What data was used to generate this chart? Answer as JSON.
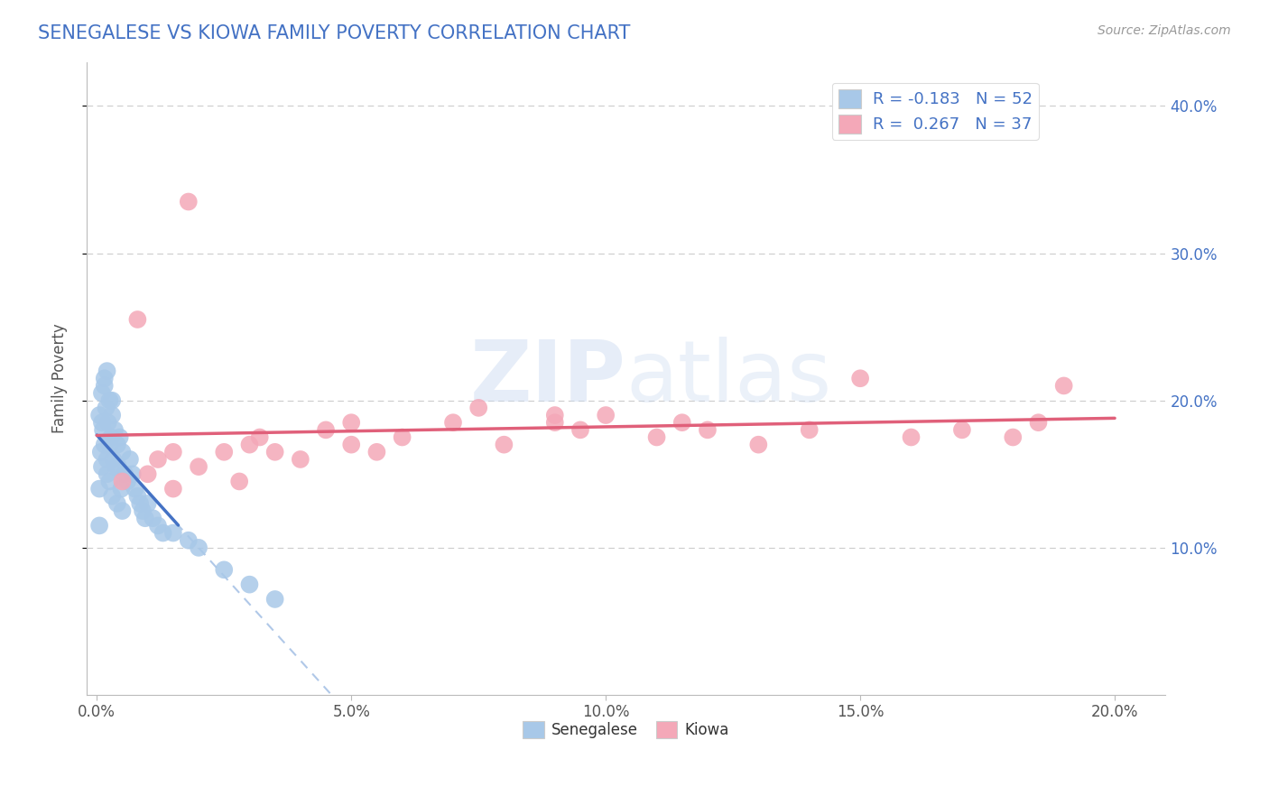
{
  "title": "SENEGALESE VS KIOWA FAMILY POVERTY CORRELATION CHART",
  "source": "Source: ZipAtlas.com",
  "xlabel_vals": [
    0.0,
    5.0,
    10.0,
    15.0,
    20.0
  ],
  "ylabel_vals": [
    10.0,
    20.0,
    30.0,
    40.0
  ],
  "ylim": [
    0.0,
    43.0
  ],
  "xlim": [
    -0.2,
    21.0
  ],
  "senegalese_color": "#a8c8e8",
  "kiowa_color": "#f4a8b8",
  "senegalese_R": -0.183,
  "senegalese_N": 52,
  "kiowa_R": 0.267,
  "kiowa_N": 37,
  "regression_line_blue": "#4472c4",
  "regression_line_pink": "#e0607a",
  "dashed_line_color": "#b0c8e8",
  "watermark": "ZIPatlas",
  "background_color": "#ffffff",
  "senegalese_x": [
    0.05,
    0.05,
    0.08,
    0.1,
    0.1,
    0.12,
    0.15,
    0.15,
    0.18,
    0.2,
    0.2,
    0.22,
    0.25,
    0.25,
    0.28,
    0.3,
    0.3,
    0.32,
    0.35,
    0.38,
    0.4,
    0.4,
    0.42,
    0.45,
    0.48,
    0.5,
    0.5,
    0.55,
    0.6,
    0.65,
    0.7,
    0.75,
    0.8,
    0.85,
    0.9,
    0.95,
    1.0,
    1.1,
    1.2,
    1.3,
    1.5,
    1.8,
    2.0,
    2.5,
    3.0,
    3.5,
    0.05,
    0.1,
    0.15,
    0.2,
    0.25,
    0.3
  ],
  "senegalese_y": [
    19.0,
    14.0,
    16.5,
    20.5,
    15.5,
    18.0,
    21.5,
    17.0,
    19.5,
    22.0,
    15.0,
    18.5,
    20.0,
    14.5,
    17.5,
    19.0,
    13.5,
    16.0,
    18.0,
    15.5,
    17.0,
    13.0,
    15.5,
    17.5,
    14.0,
    16.5,
    12.5,
    15.0,
    14.5,
    16.0,
    15.0,
    14.0,
    13.5,
    13.0,
    12.5,
    12.0,
    13.0,
    12.0,
    11.5,
    11.0,
    11.0,
    10.5,
    10.0,
    8.5,
    7.5,
    6.5,
    11.5,
    18.5,
    21.0,
    16.0,
    17.0,
    20.0
  ],
  "kiowa_x": [
    0.5,
    0.8,
    1.0,
    1.2,
    1.5,
    1.8,
    2.0,
    2.5,
    2.8,
    3.0,
    3.5,
    4.0,
    4.5,
    5.0,
    5.5,
    6.0,
    7.0,
    7.5,
    8.0,
    9.0,
    9.5,
    10.0,
    11.0,
    11.5,
    12.0,
    13.0,
    14.0,
    15.0,
    16.0,
    17.0,
    18.0,
    18.5,
    19.0,
    1.5,
    3.2,
    5.0,
    9.0
  ],
  "kiowa_y": [
    14.5,
    25.5,
    15.0,
    16.0,
    14.0,
    33.5,
    15.5,
    16.5,
    14.5,
    17.0,
    16.5,
    16.0,
    18.0,
    17.0,
    16.5,
    17.5,
    18.5,
    19.5,
    17.0,
    18.5,
    18.0,
    19.0,
    17.5,
    18.5,
    18.0,
    17.0,
    18.0,
    21.5,
    17.5,
    18.0,
    17.5,
    18.5,
    21.0,
    16.5,
    17.5,
    18.5,
    19.0
  ]
}
